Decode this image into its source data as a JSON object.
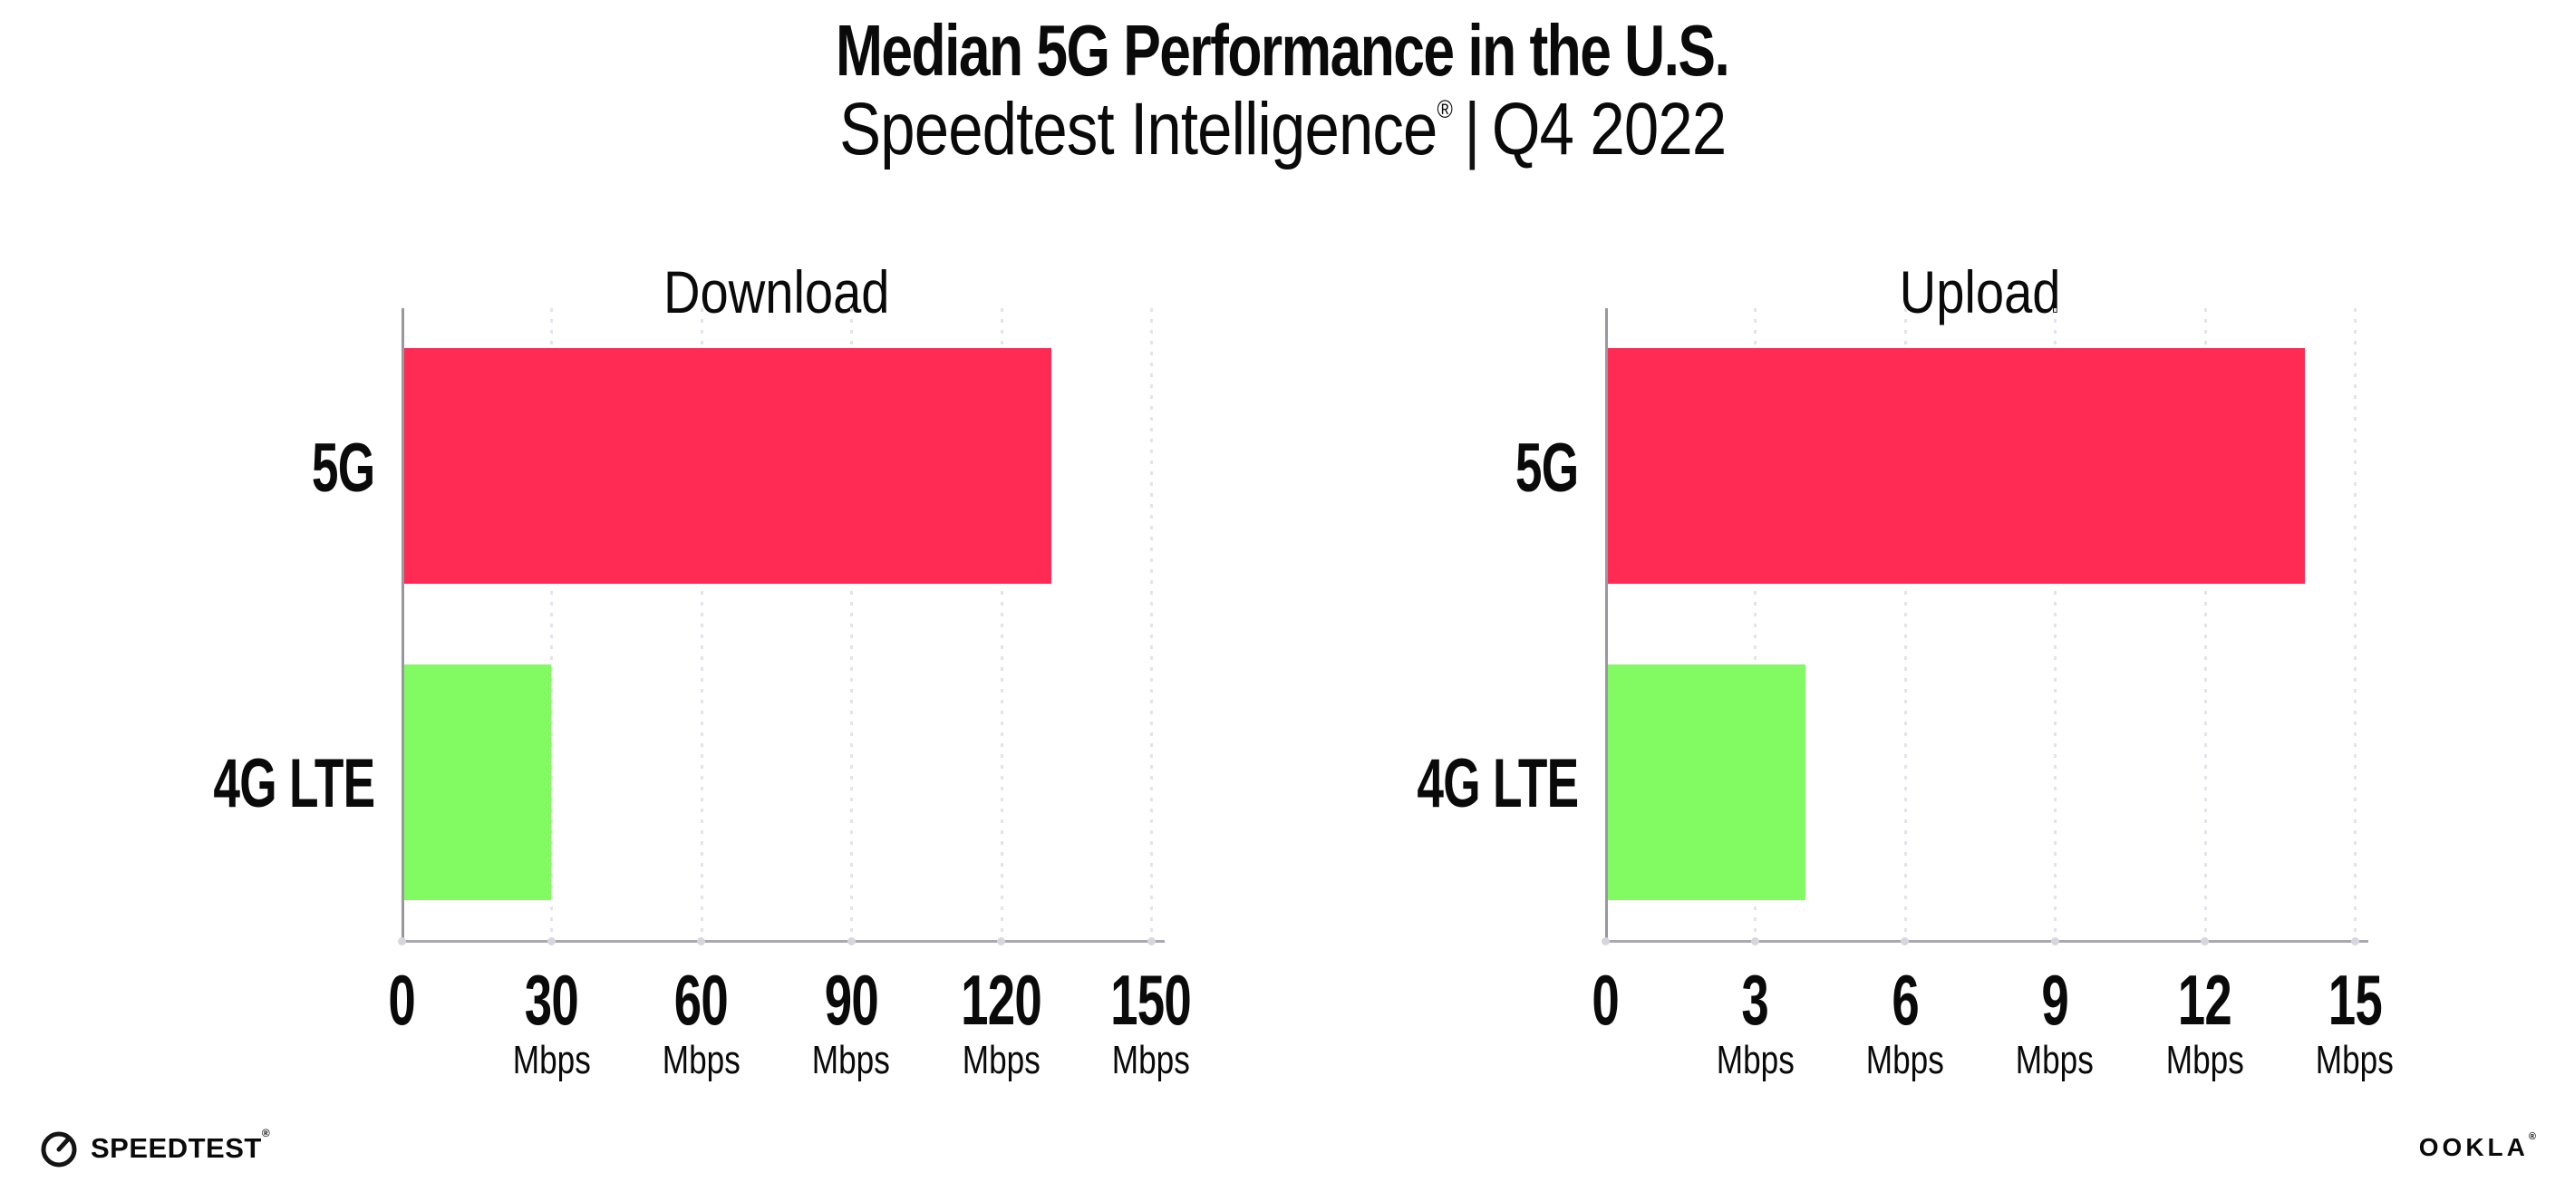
{
  "title": "Median 5G Performance in the U.S.",
  "subtitle": {
    "brand": "Speedtest Intelligence",
    "registered": "®",
    "divider": "|",
    "quarter": "Q4 2022"
  },
  "colors": {
    "bar_5g": "#ff2b55",
    "bar_4g_lte": "#82fb63",
    "axis": "#a0a0a6",
    "gridline": "#e3e3eb",
    "text": "#0a0a0a"
  },
  "chart_data": [
    {
      "type": "bar",
      "orientation": "horizontal",
      "title": "Download",
      "categories": [
        "5G",
        "4G LTE"
      ],
      "values": [
        130,
        30
      ],
      "unit": "Mbps",
      "xlim": [
        0,
        150
      ],
      "ticks": [
        0,
        30,
        60,
        90,
        120,
        150
      ],
      "bar_colors": [
        "#ff2b55",
        "#82fb63"
      ],
      "grid": "vertical-dotted",
      "legend": "none"
    },
    {
      "type": "bar",
      "orientation": "horizontal",
      "title": "Upload",
      "categories": [
        "5G",
        "4G LTE"
      ],
      "values": [
        14,
        4
      ],
      "unit": "Mbps",
      "xlim": [
        0,
        15
      ],
      "ticks": [
        0,
        3,
        6,
        9,
        12,
        15
      ],
      "bar_colors": [
        "#ff2b55",
        "#82fb63"
      ],
      "grid": "vertical-dotted",
      "legend": "none"
    }
  ],
  "footer": {
    "speedtest_label": "SPEEDTEST",
    "speedtest_mark": "®",
    "ookla_label": "OOKLA",
    "ookla_mark": "®"
  }
}
